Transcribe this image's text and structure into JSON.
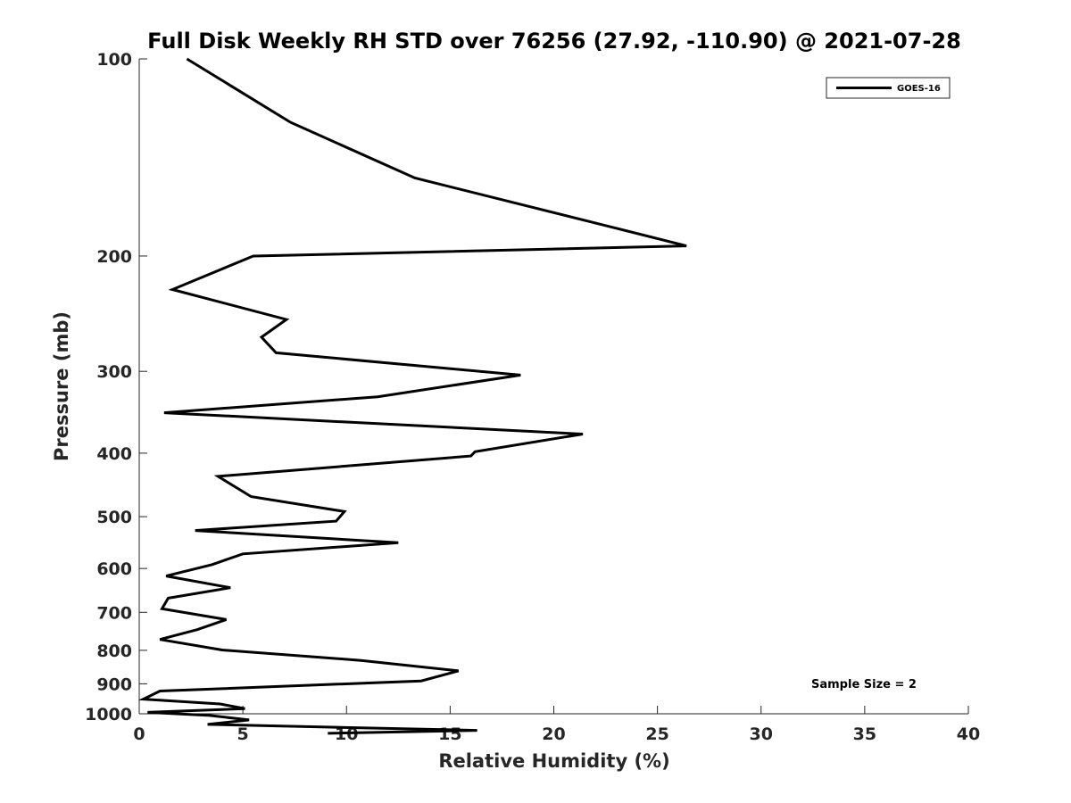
{
  "chart_data": {
    "type": "line",
    "title": "Full Disk Weekly RH STD over 76256 (27.92, -110.90) @ 2021-07-28",
    "xlabel": "Relative Humidity (%)",
    "ylabel": "Pressure (mb)",
    "xlim": [
      0,
      40
    ],
    "ylim": [
      100,
      1000
    ],
    "yscale": "log",
    "yreversed": true,
    "xticks": [
      0,
      5,
      10,
      15,
      20,
      25,
      30,
      35,
      40
    ],
    "yticks": [
      100,
      200,
      300,
      400,
      500,
      600,
      700,
      800,
      900,
      1000
    ],
    "grid": false,
    "legend_position": "top-right",
    "annotation": "Sample Size = 2",
    "series": [
      {
        "name": "GOES-16",
        "color": "#000000",
        "points": [
          [
            2.3,
            100
          ],
          [
            7.3,
            125
          ],
          [
            13.3,
            152
          ],
          [
            22.6,
            180
          ],
          [
            26.4,
            193
          ],
          [
            5.5,
            200
          ],
          [
            1.6,
            225
          ],
          [
            7.1,
            250
          ],
          [
            5.9,
            266
          ],
          [
            6.6,
            281
          ],
          [
            18.4,
            304
          ],
          [
            11.5,
            328
          ],
          [
            1.2,
            347
          ],
          [
            21.4,
            374
          ],
          [
            16.2,
            398
          ],
          [
            16.0,
            404
          ],
          [
            3.8,
            434
          ],
          [
            5.4,
            466
          ],
          [
            9.9,
            491
          ],
          [
            9.5,
            508
          ],
          [
            2.7,
            525
          ],
          [
            12.5,
            548
          ],
          [
            5.0,
            570
          ],
          [
            3.5,
            592
          ],
          [
            1.3,
            616
          ],
          [
            4.4,
            642
          ],
          [
            1.4,
            666
          ],
          [
            1.1,
            691
          ],
          [
            4.2,
            718
          ],
          [
            2.8,
            744
          ],
          [
            1.0,
            770
          ],
          [
            4.0,
            799
          ],
          [
            10.7,
            829
          ],
          [
            15.4,
            860
          ],
          [
            13.6,
            891
          ],
          [
            1.0,
            923
          ],
          [
            0.2,
            950
          ],
          [
            3.9,
            966
          ],
          [
            5.1,
            982
          ],
          [
            0.4,
            995
          ],
          [
            3.4,
            1006
          ],
          [
            5.3,
            1022
          ],
          [
            3.3,
            1038
          ],
          [
            16.3,
            1060
          ],
          [
            9.1,
            1071
          ]
        ]
      }
    ]
  }
}
